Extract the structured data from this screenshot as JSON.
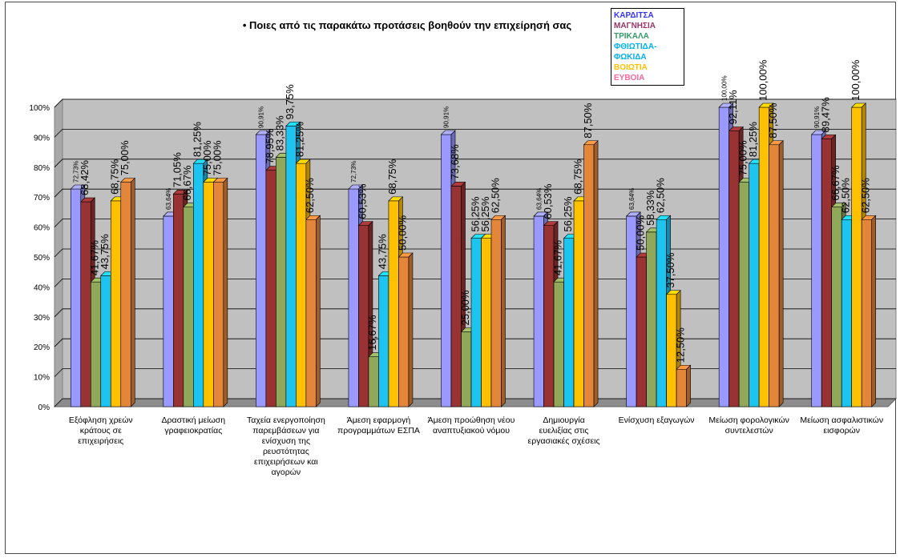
{
  "chart_data": {
    "type": "bar",
    "title": "• Ποιες από τις παρακάτω προτάσεις βοηθούν την επιχείρησή σας",
    "xlabel": "",
    "ylabel": "",
    "ylim": [
      0,
      100
    ],
    "yticks": [
      "0%",
      "10%",
      "20%",
      "30%",
      "40%",
      "50%",
      "60%",
      "70%",
      "80%",
      "90%",
      "100%"
    ],
    "grid": true,
    "legend_position": "top-right",
    "categories": [
      "Εξόφληση χρεών κράτους σε επιχειρήσεις",
      "Δραστική μείωση γραφειοκρατίας",
      "Ταχεία ενεργοποίηση παρεμβάσεων για ενίσχυση της ρευστότητας επιχειρήσεων και αγορών",
      "Άμεση εφαρμογή προγραμμάτων ΕΣΠΑ",
      "Άμεση προώθηση νέου αναπτυξιακού νόμου",
      "Δημιουργία ευελιξίας στις εργασιακές σχέσεις",
      "Ενίσχυση εξαγωγών",
      "Μείωση φορολογικών συντελεστών",
      "Μείωση ασφαλιστικών εισφορών"
    ],
    "series": [
      {
        "name": "ΚΑΡΔΙΤΣΑ",
        "color": "#9999ff",
        "legend_color": "#3333ff",
        "values": [
          72.73,
          63.64,
          90.91,
          72.73,
          90.91,
          63.64,
          63.64,
          100.0,
          90.91
        ],
        "labels": [
          "72,73%",
          "63,64%",
          "90,91%",
          "72,73%",
          "90,91%",
          "63,64%",
          "63,64%",
          "100,00%",
          "90,91%"
        ]
      },
      {
        "name": "ΜΑΓΝΗΣΙΑ",
        "color": "#993333",
        "legend_color": "#993366",
        "values": [
          68.42,
          71.05,
          78.95,
          60.53,
          73.68,
          60.53,
          50.0,
          92.11,
          89.47
        ],
        "labels": [
          "68,42%",
          "71,05%",
          "78,95%",
          "60,53%",
          "73,68%",
          "60,53%",
          "50,00%",
          "92,11%",
          "89,47%"
        ]
      },
      {
        "name": "ΤΡΙΚΑΛΑ",
        "color": "#8fa85a",
        "legend_color": "#339966",
        "values": [
          41.67,
          66.67,
          83.33,
          16.67,
          25.0,
          41.67,
          58.33,
          75.0,
          66.67
        ],
        "labels": [
          "41,67%",
          "66,67%",
          "83,33%",
          "16,67%",
          "25,00%",
          "41,67%",
          "58,33%",
          "75,00%",
          "66,67%"
        ]
      },
      {
        "name": "ΦΘΙΩΤΙΔΑ-ΦΩΚΙΔΑ",
        "color": "#1ec4f0",
        "legend_color": "#00b0f0",
        "values": [
          43.75,
          81.25,
          93.75,
          43.75,
          56.25,
          56.25,
          62.5,
          81.25,
          62.5
        ],
        "labels": [
          "43,75%",
          "81,25%",
          "93,75%",
          "43,75%",
          "56,25%",
          "56,25%",
          "62,50%",
          "81,25%",
          "62,50%"
        ]
      },
      {
        "name": "ΒΟΙΩΤΙΑ",
        "color": "#ffc000",
        "legend_color": "#ffc000",
        "values": [
          68.75,
          75.0,
          81.25,
          68.75,
          56.25,
          68.75,
          37.5,
          100.0,
          100.0
        ],
        "labels": [
          "68,75%",
          "75,00%",
          "81,25%",
          "68,75%",
          "56,25%",
          "68,75%",
          "37,50%",
          "100,00%",
          "100,00%"
        ]
      },
      {
        "name": "ΕΥΒΟΙΑ",
        "color": "#e3863a",
        "legend_color": "#ff6699",
        "values": [
          75.0,
          75.0,
          62.5,
          50.0,
          62.5,
          87.5,
          12.5,
          87.5,
          62.5
        ],
        "labels": [
          "75,00%",
          "75,00%",
          "62,50%",
          "50,00%",
          "62,50%",
          "87,50%",
          "12,50%",
          "87,50%",
          "62,50%"
        ]
      }
    ]
  }
}
